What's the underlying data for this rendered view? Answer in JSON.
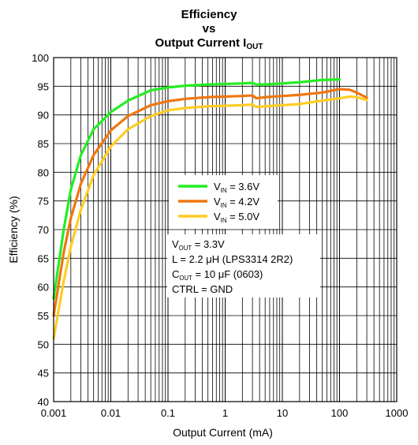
{
  "title": {
    "line1": "Efficiency",
    "line2": "vs",
    "line3_main": "Output Current I",
    "line3_sub": "OUT"
  },
  "chart_data": {
    "type": "line",
    "xlabel": "Output Current (mA)",
    "ylabel": "Efficiency (%)",
    "x_scale": "log",
    "xlim": [
      0.001,
      1000
    ],
    "ylim": [
      40,
      100
    ],
    "grid": true,
    "x_ticks": [
      "0.001",
      "0.01",
      "0.1",
      "1",
      "10",
      "100",
      "1000"
    ],
    "y_ticks": [
      "40",
      "45",
      "50",
      "55",
      "60",
      "65",
      "70",
      "75",
      "80",
      "85",
      "90",
      "95",
      "100"
    ],
    "legend_placement": "center",
    "series": [
      {
        "name": "VIN = 3.6V",
        "label_main": "V",
        "label_sub": "IN",
        "label_rest": " = 3.6V",
        "color": "#22ee22",
        "x": [
          0.001,
          0.0015,
          0.002,
          0.003,
          0.005,
          0.01,
          0.02,
          0.05,
          0.1,
          0.2,
          0.5,
          1,
          2,
          3,
          3.5,
          5,
          10,
          20,
          50,
          100
        ],
        "y": [
          58,
          70,
          77,
          83,
          87.5,
          90.5,
          92.5,
          94.3,
          94.8,
          95.1,
          95.3,
          95.4,
          95.5,
          95.6,
          95.3,
          95.3,
          95.5,
          95.7,
          96.1,
          96.2
        ]
      },
      {
        "name": "VIN = 4.2V",
        "label_main": "V",
        "label_sub": "IN",
        "label_rest": " = 4.2V",
        "color": "#ee7711",
        "x": [
          0.001,
          0.0015,
          0.002,
          0.003,
          0.005,
          0.01,
          0.02,
          0.05,
          0.1,
          0.2,
          0.5,
          1,
          2,
          3,
          3.5,
          5,
          10,
          20,
          50,
          100,
          150,
          200,
          300
        ],
        "y": [
          55,
          66,
          72,
          78,
          83,
          87.3,
          89.8,
          91.7,
          92.4,
          92.8,
          93.1,
          93.2,
          93.3,
          93.4,
          92.9,
          93.1,
          93.3,
          93.5,
          93.9,
          94.5,
          94.4,
          93.9,
          93.0
        ]
      },
      {
        "name": "VIN = 5.0V",
        "label_main": "V",
        "label_sub": "IN",
        "label_rest": " = 5.0V",
        "color": "#ffcc22",
        "x": [
          0.001,
          0.0015,
          0.002,
          0.003,
          0.005,
          0.01,
          0.02,
          0.05,
          0.1,
          0.2,
          0.5,
          1,
          2,
          3,
          3.5,
          5,
          10,
          20,
          50,
          100,
          150,
          200,
          300
        ],
        "y": [
          51,
          61,
          67,
          73.5,
          79.5,
          84.5,
          87.5,
          89.8,
          90.8,
          91.2,
          91.5,
          91.6,
          91.7,
          91.8,
          91.4,
          91.5,
          91.7,
          91.9,
          92.5,
          92.9,
          93.2,
          93.1,
          92.6
        ]
      }
    ],
    "annotations": [
      {
        "main": "V",
        "sub": "OUT",
        "rest": " = 3.3V"
      },
      {
        "main": "L = 2.2 ",
        "sub": "",
        "rest": "",
        "full": "L = 2.2 μH (LPS3314 2R2)"
      },
      {
        "main": "C",
        "sub": "OUT",
        "rest": " = 10 μF (0603)"
      },
      {
        "main": "CTRL = GND",
        "sub": "",
        "rest": ""
      }
    ]
  }
}
